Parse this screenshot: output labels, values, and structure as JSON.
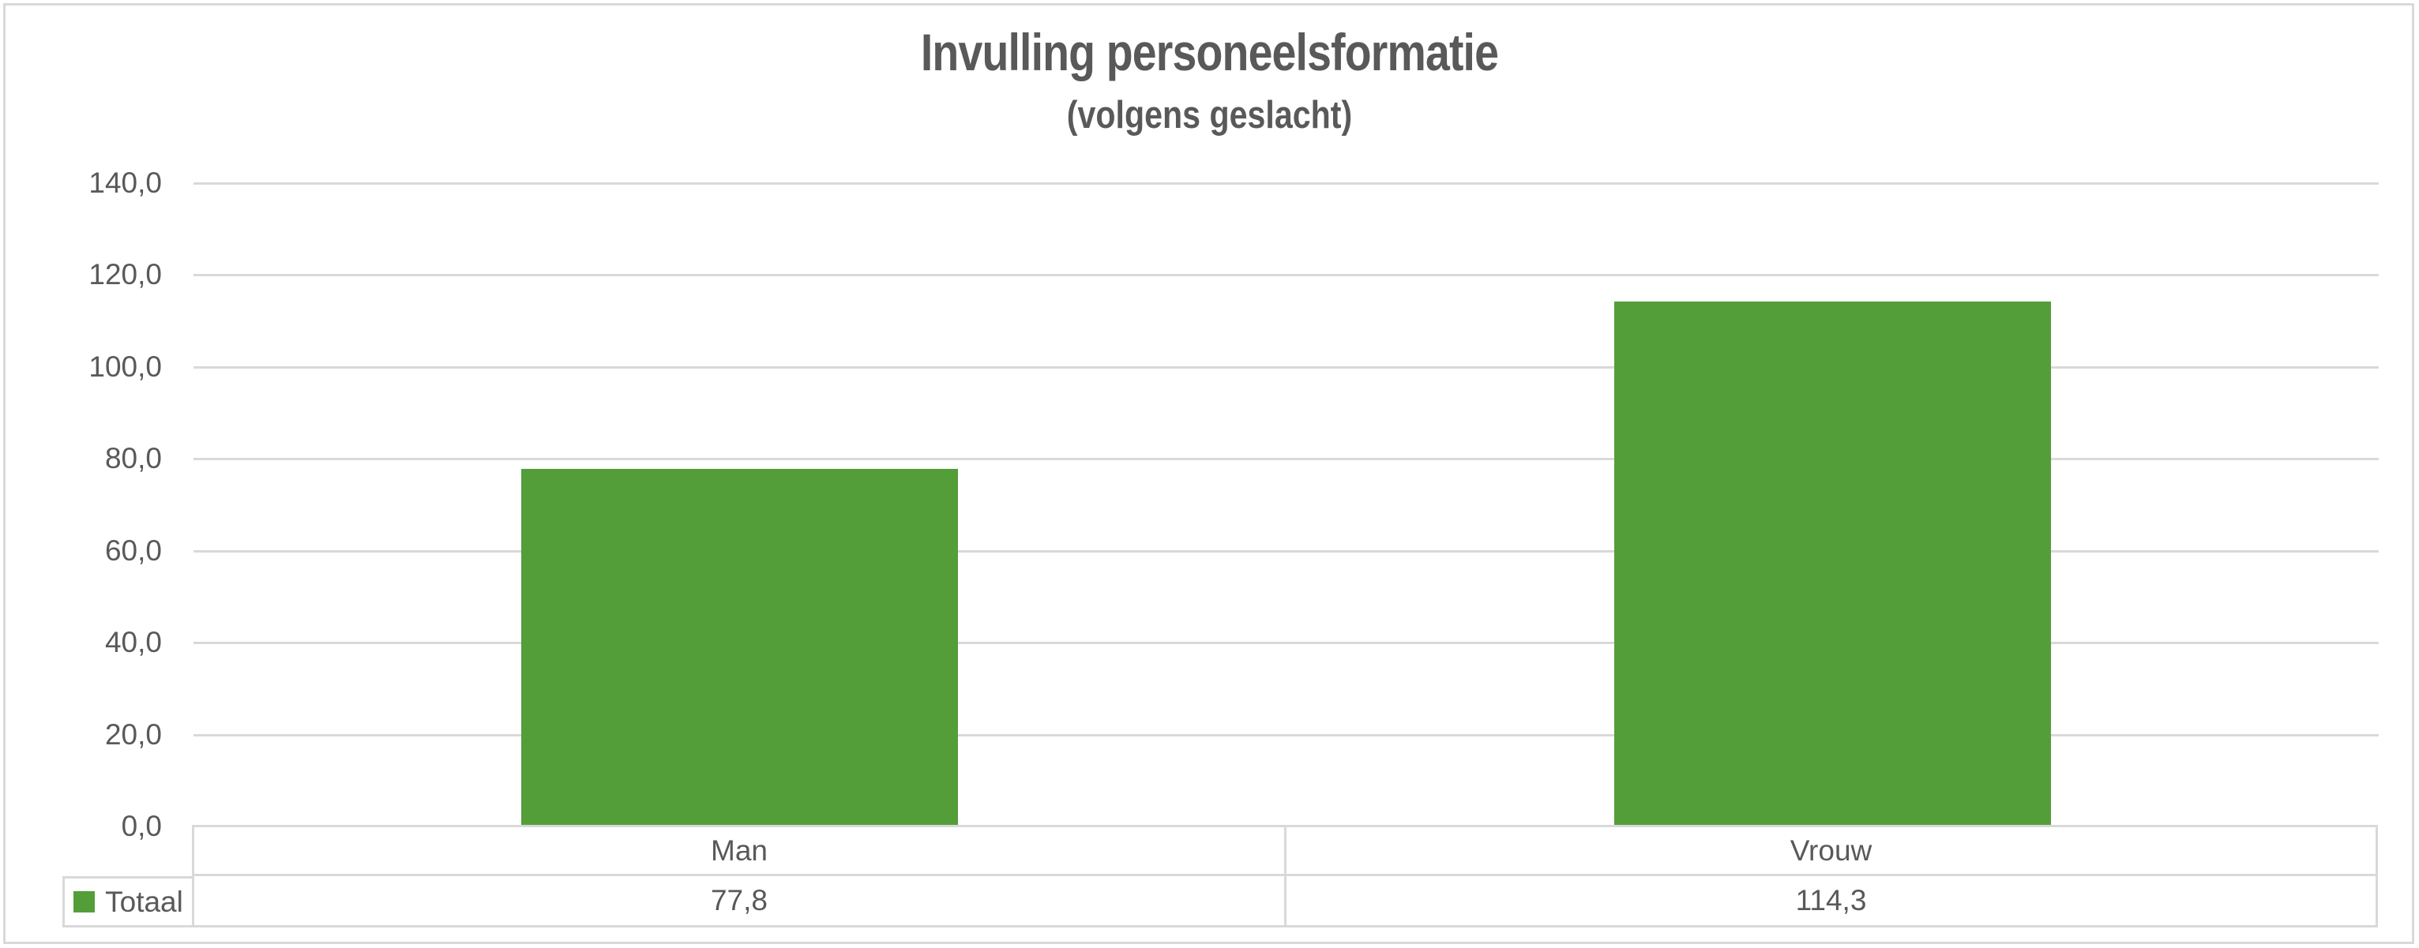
{
  "chart_data": {
    "type": "bar",
    "title": "Invulling personeelsformatie",
    "subtitle": "(volgens geslacht)",
    "categories": [
      "Man",
      "Vrouw"
    ],
    "series": [
      {
        "name": "Totaal",
        "values": [
          77.8,
          114.3
        ],
        "color": "#549E39"
      }
    ],
    "value_labels": [
      "77,8",
      "114,3"
    ],
    "xlabel": "",
    "ylabel": "",
    "ylim": [
      0,
      140
    ],
    "ytick_step": 20,
    "yticks": [
      "140,0",
      "120,0",
      "100,0",
      "80,0",
      "60,0",
      "40,0",
      "20,0",
      "0,0"
    ],
    "grid": true,
    "legend_position": "bottom-left",
    "data_table_shown": true
  },
  "colors": {
    "bar_green": "#549E39",
    "grid_line": "#D9D9D9",
    "border": "#D9D9D9",
    "text": "#595959",
    "background": "#FFFFFF"
  }
}
